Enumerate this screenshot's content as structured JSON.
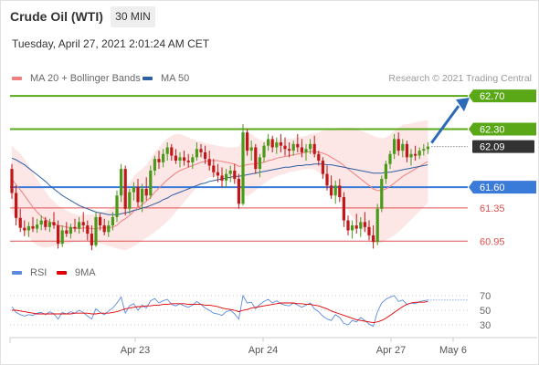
{
  "header": {
    "instrument": "Crude Oil (WTI)",
    "interval": "30 MIN",
    "timestamp": "Tuesday, April 27, 2021 2:01:24 AM CET"
  },
  "legend": [
    {
      "label": "MA 20 + Bollinger Bands",
      "color": "#f08080"
    },
    {
      "label": "MA 50",
      "color": "#2e5fa0"
    }
  ],
  "credit": "Research © 2021 Trading Central",
  "rsi_legend": [
    {
      "label": "RSI",
      "color": "#5b8ae0"
    },
    {
      "label": "9MA",
      "color": "#e00000"
    }
  ],
  "chart_data": {
    "type": "candlestick",
    "ylim": [
      60.7,
      62.8
    ],
    "last_price": 62.09,
    "forecast_target": 62.7,
    "levels": [
      {
        "value": 62.7,
        "label": "62.70",
        "kind": "resistance-target",
        "color": "#5aa818"
      },
      {
        "value": 62.3,
        "label": "62.30",
        "kind": "resistance",
        "color": "#5aa818"
      },
      {
        "value": 62.09,
        "label": "62.09",
        "kind": "last-price",
        "color": "#333333"
      },
      {
        "value": 61.6,
        "label": "61.60",
        "kind": "pivot",
        "color": "#3a7ad8"
      },
      {
        "value": 61.35,
        "label": "61.35",
        "kind": "support",
        "color": "#e05050"
      },
      {
        "value": 60.95,
        "label": "60.95",
        "kind": "support",
        "color": "#e05050"
      }
    ],
    "x_ticks": [
      "Apr 23",
      "Apr 24",
      "Apr 27",
      "May 6"
    ],
    "candles": [
      [
        61.82,
        61.88,
        61.46,
        61.53
      ],
      [
        61.53,
        61.62,
        61.14,
        61.23
      ],
      [
        61.23,
        61.34,
        61.06,
        61.11
      ],
      [
        61.11,
        61.2,
        61.01,
        61.08
      ],
      [
        61.08,
        61.18,
        61.0,
        61.13
      ],
      [
        61.13,
        61.24,
        61.06,
        61.1
      ],
      [
        61.1,
        61.22,
        61.05,
        61.15
      ],
      [
        61.15,
        61.26,
        61.08,
        61.2
      ],
      [
        61.2,
        61.24,
        61.08,
        61.12
      ],
      [
        61.12,
        61.22,
        61.06,
        61.18
      ],
      [
        61.18,
        61.3,
        61.1,
        61.14
      ],
      [
        61.14,
        61.2,
        60.86,
        60.92
      ],
      [
        60.92,
        61.14,
        60.88,
        61.08
      ],
      [
        61.08,
        61.18,
        61.0,
        61.04
      ],
      [
        61.04,
        61.16,
        60.98,
        61.12
      ],
      [
        61.12,
        61.22,
        61.06,
        61.1
      ],
      [
        61.1,
        61.24,
        61.04,
        61.18
      ],
      [
        61.18,
        61.3,
        61.06,
        61.14
      ],
      [
        61.14,
        61.2,
        60.96,
        61.04
      ],
      [
        61.04,
        61.14,
        60.84,
        60.9
      ],
      [
        60.9,
        61.3,
        60.88,
        61.24
      ],
      [
        61.24,
        61.28,
        61.08,
        61.14
      ],
      [
        61.14,
        61.22,
        61.02,
        61.06
      ],
      [
        61.06,
        61.2,
        61.0,
        61.14
      ],
      [
        61.14,
        61.3,
        61.08,
        61.24
      ],
      [
        61.24,
        61.56,
        61.18,
        61.5
      ],
      [
        61.5,
        61.88,
        61.42,
        61.82
      ],
      [
        61.82,
        61.86,
        61.26,
        61.34
      ],
      [
        61.34,
        61.58,
        61.28,
        61.54
      ],
      [
        61.54,
        61.66,
        61.44,
        61.6
      ],
      [
        61.6,
        61.7,
        61.36,
        61.42
      ],
      [
        61.42,
        61.64,
        61.3,
        61.58
      ],
      [
        61.58,
        61.72,
        61.44,
        61.5
      ],
      [
        61.5,
        61.86,
        61.46,
        61.8
      ],
      [
        61.8,
        61.98,
        61.74,
        61.94
      ],
      [
        61.94,
        62.04,
        61.82,
        61.9
      ],
      [
        61.9,
        62.06,
        61.84,
        62.0
      ],
      [
        62.0,
        62.14,
        61.92,
        62.08
      ],
      [
        62.08,
        62.12,
        61.92,
        61.98
      ],
      [
        61.98,
        62.06,
        61.88,
        61.92
      ],
      [
        61.92,
        62.02,
        61.84,
        61.96
      ],
      [
        61.96,
        62.04,
        61.86,
        61.92
      ],
      [
        61.92,
        62.0,
        61.84,
        61.9
      ],
      [
        61.9,
        62.0,
        61.82,
        61.96
      ],
      [
        61.96,
        62.14,
        61.92,
        62.06
      ],
      [
        62.06,
        62.12,
        61.96,
        62.02
      ],
      [
        62.02,
        62.1,
        61.88,
        61.94
      ],
      [
        61.94,
        62.04,
        61.8,
        61.86
      ],
      [
        61.86,
        61.94,
        61.72,
        61.78
      ],
      [
        61.78,
        61.88,
        61.66,
        61.74
      ],
      [
        61.74,
        61.84,
        61.6,
        61.68
      ],
      [
        61.68,
        61.82,
        61.6,
        61.76
      ],
      [
        61.76,
        61.86,
        61.66,
        61.8
      ],
      [
        61.8,
        61.88,
        61.64,
        61.7
      ],
      [
        61.7,
        61.76,
        61.34,
        61.4
      ],
      [
        61.4,
        62.36,
        61.38,
        62.26
      ],
      [
        62.26,
        62.3,
        61.98,
        62.04
      ],
      [
        62.04,
        62.16,
        61.92,
        62.08
      ],
      [
        62.08,
        62.12,
        61.76,
        61.82
      ],
      [
        61.82,
        62.0,
        61.72,
        61.96
      ],
      [
        61.96,
        62.14,
        61.9,
        62.1
      ],
      [
        62.1,
        62.24,
        62.04,
        62.18
      ],
      [
        62.18,
        62.22,
        62.02,
        62.08
      ],
      [
        62.08,
        62.2,
        62.0,
        62.14
      ],
      [
        62.14,
        62.24,
        62.02,
        62.1
      ],
      [
        62.1,
        62.2,
        61.98,
        62.06
      ],
      [
        62.06,
        62.14,
        61.96,
        62.04
      ],
      [
        62.04,
        62.16,
        61.98,
        62.12
      ],
      [
        62.12,
        62.24,
        62.02,
        62.08
      ],
      [
        62.08,
        62.18,
        61.96,
        62.02
      ],
      [
        62.02,
        62.12,
        61.92,
        62.06
      ],
      [
        62.06,
        62.18,
        62.0,
        62.12
      ],
      [
        62.12,
        62.22,
        61.96,
        62.0
      ],
      [
        62.0,
        62.04,
        61.86,
        61.92
      ],
      [
        61.92,
        61.96,
        61.7,
        61.76
      ],
      [
        61.76,
        61.86,
        61.56,
        61.62
      ],
      [
        61.62,
        61.74,
        61.46,
        61.5
      ],
      [
        61.5,
        61.68,
        61.4,
        61.62
      ],
      [
        61.62,
        61.7,
        61.42,
        61.48
      ],
      [
        61.48,
        61.54,
        61.12,
        61.2
      ],
      [
        61.2,
        61.26,
        61.02,
        61.08
      ],
      [
        61.08,
        61.2,
        60.98,
        61.14
      ],
      [
        61.14,
        61.28,
        61.04,
        61.1
      ],
      [
        61.1,
        61.24,
        61.0,
        61.18
      ],
      [
        61.18,
        61.3,
        61.06,
        61.12
      ],
      [
        61.12,
        61.2,
        60.96,
        61.02
      ],
      [
        61.02,
        61.14,
        60.86,
        60.94
      ],
      [
        60.94,
        61.4,
        60.9,
        61.34
      ],
      [
        61.34,
        61.74,
        61.3,
        61.7
      ],
      [
        61.7,
        61.92,
        61.64,
        61.88
      ],
      [
        61.88,
        62.04,
        61.82,
        62.0
      ],
      [
        62.0,
        62.24,
        61.94,
        62.18
      ],
      [
        62.18,
        62.26,
        61.98,
        62.04
      ],
      [
        62.04,
        62.18,
        61.96,
        62.12
      ],
      [
        62.12,
        62.16,
        61.9,
        61.96
      ],
      [
        61.96,
        62.06,
        61.86,
        62.0
      ],
      [
        62.0,
        62.1,
        61.92,
        61.98
      ],
      [
        61.98,
        62.08,
        61.94,
        62.04
      ],
      [
        62.04,
        62.12,
        61.98,
        62.06
      ],
      [
        62.06,
        62.14,
        62.0,
        62.09
      ]
    ],
    "ma20": [
      61.7,
      61.63,
      61.57,
      61.5,
      61.43,
      61.36,
      61.3,
      61.25,
      61.21,
      61.18,
      61.16,
      61.14,
      61.13,
      61.12,
      61.11,
      61.11,
      61.1,
      61.11,
      61.11,
      61.1,
      61.1,
      61.11,
      61.11,
      61.11,
      61.12,
      61.14,
      61.19,
      61.22,
      61.26,
      61.31,
      61.35,
      61.39,
      61.43,
      61.48,
      61.54,
      61.59,
      61.64,
      61.69,
      61.73,
      61.77,
      61.8,
      61.82,
      61.84,
      61.86,
      61.88,
      61.9,
      61.91,
      61.92,
      61.92,
      61.92,
      61.91,
      61.9,
      61.89,
      61.88,
      61.85,
      61.86,
      61.87,
      61.88,
      61.88,
      61.89,
      61.9,
      61.92,
      61.93,
      61.95,
      61.96,
      61.97,
      61.98,
      61.99,
      62.0,
      62.01,
      62.02,
      62.03,
      62.03,
      62.02,
      62.01,
      61.99,
      61.96,
      61.93,
      61.9,
      61.86,
      61.82,
      61.78,
      61.74,
      61.7,
      61.66,
      61.62,
      61.58,
      61.56,
      61.56,
      61.58,
      61.61,
      61.65,
      61.69,
      61.73,
      61.76,
      61.79,
      61.82,
      61.85,
      61.88,
      61.91
    ],
    "ma50": [
      61.95,
      61.93,
      61.9,
      61.87,
      61.83,
      61.79,
      61.75,
      61.71,
      61.67,
      61.62,
      61.58,
      61.54,
      61.5,
      61.47,
      61.44,
      61.41,
      61.38,
      61.36,
      61.34,
      61.32,
      61.3,
      61.29,
      61.28,
      61.27,
      61.27,
      61.27,
      61.28,
      61.29,
      61.3,
      61.32,
      61.33,
      61.35,
      61.36,
      61.38,
      61.4,
      61.42,
      61.45,
      61.47,
      61.5,
      61.52,
      61.54,
      61.56,
      61.58,
      61.6,
      61.62,
      61.64,
      61.65,
      61.67,
      61.68,
      61.69,
      61.7,
      61.71,
      61.72,
      61.73,
      61.73,
      61.74,
      61.75,
      61.76,
      61.77,
      61.78,
      61.79,
      61.8,
      61.81,
      61.82,
      61.83,
      61.84,
      61.84,
      61.85,
      61.86,
      61.86,
      61.87,
      61.87,
      61.88,
      61.88,
      61.88,
      61.87,
      61.87,
      61.86,
      61.85,
      61.84,
      61.83,
      61.82,
      61.81,
      61.8,
      61.79,
      61.78,
      61.77,
      61.77,
      61.77,
      61.78,
      61.78,
      61.79,
      61.8,
      61.81,
      61.82,
      61.83,
      61.84,
      61.85,
      61.86,
      61.87
    ],
    "bb_width": [
      0.4,
      0.42,
      0.44,
      0.44,
      0.43,
      0.42,
      0.4,
      0.37,
      0.34,
      0.3,
      0.27,
      0.24,
      0.22,
      0.2,
      0.18,
      0.17,
      0.16,
      0.16,
      0.16,
      0.17,
      0.18,
      0.19,
      0.2,
      0.22,
      0.24,
      0.28,
      0.34,
      0.38,
      0.4,
      0.42,
      0.43,
      0.43,
      0.44,
      0.46,
      0.48,
      0.49,
      0.5,
      0.5,
      0.49,
      0.47,
      0.44,
      0.4,
      0.36,
      0.32,
      0.28,
      0.25,
      0.22,
      0.2,
      0.19,
      0.18,
      0.18,
      0.18,
      0.19,
      0.2,
      0.24,
      0.34,
      0.38,
      0.36,
      0.32,
      0.28,
      0.26,
      0.24,
      0.22,
      0.22,
      0.21,
      0.21,
      0.2,
      0.2,
      0.2,
      0.2,
      0.2,
      0.21,
      0.22,
      0.24,
      0.27,
      0.3,
      0.34,
      0.38,
      0.42,
      0.46,
      0.5,
      0.54,
      0.56,
      0.58,
      0.6,
      0.62,
      0.64,
      0.64,
      0.63,
      0.62,
      0.62,
      0.63,
      0.63,
      0.62,
      0.6,
      0.58,
      0.56,
      0.54,
      0.52,
      0.5
    ],
    "rsi": {
      "ylim": [
        20,
        80
      ],
      "ticks": [
        70,
        50,
        30
      ],
      "rsi": [
        55,
        47,
        44,
        42,
        44,
        43,
        46,
        47,
        44,
        48,
        45,
        38,
        47,
        45,
        48,
        46,
        50,
        47,
        42,
        38,
        52,
        47,
        44,
        49,
        53,
        60,
        68,
        46,
        56,
        59,
        50,
        57,
        53,
        63,
        66,
        60,
        63,
        65,
        58,
        56,
        59,
        56,
        54,
        57,
        62,
        58,
        53,
        50,
        46,
        45,
        43,
        48,
        50,
        45,
        38,
        70,
        60,
        61,
        52,
        58,
        62,
        65,
        60,
        63,
        59,
        57,
        56,
        60,
        57,
        54,
        57,
        60,
        52,
        48,
        42,
        38,
        36,
        44,
        40,
        32,
        30,
        36,
        34,
        40,
        36,
        31,
        28,
        48,
        60,
        65,
        68,
        70,
        62,
        64,
        58,
        60,
        59,
        62,
        63,
        64
      ],
      "rsi_ma": [
        50,
        50,
        49,
        48,
        47,
        46,
        45,
        45,
        45,
        45,
        45,
        45,
        45,
        45,
        45,
        46,
        46,
        46,
        46,
        45,
        45,
        46,
        46,
        46,
        47,
        48,
        50,
        52,
        53,
        54,
        55,
        55,
        56,
        56,
        57,
        57,
        58,
        58,
        59,
        59,
        59,
        59,
        58,
        58,
        58,
        58,
        57,
        57,
        56,
        55,
        53,
        52,
        51,
        50,
        48,
        50,
        51,
        53,
        54,
        55,
        56,
        57,
        58,
        59,
        60,
        60,
        60,
        60,
        59,
        59,
        58,
        58,
        57,
        56,
        54,
        52,
        49,
        47,
        45,
        43,
        41,
        39,
        37,
        36,
        35,
        34,
        33,
        34,
        36,
        39,
        43,
        47,
        51,
        55,
        58,
        60,
        61,
        61,
        61,
        62
      ]
    }
  }
}
